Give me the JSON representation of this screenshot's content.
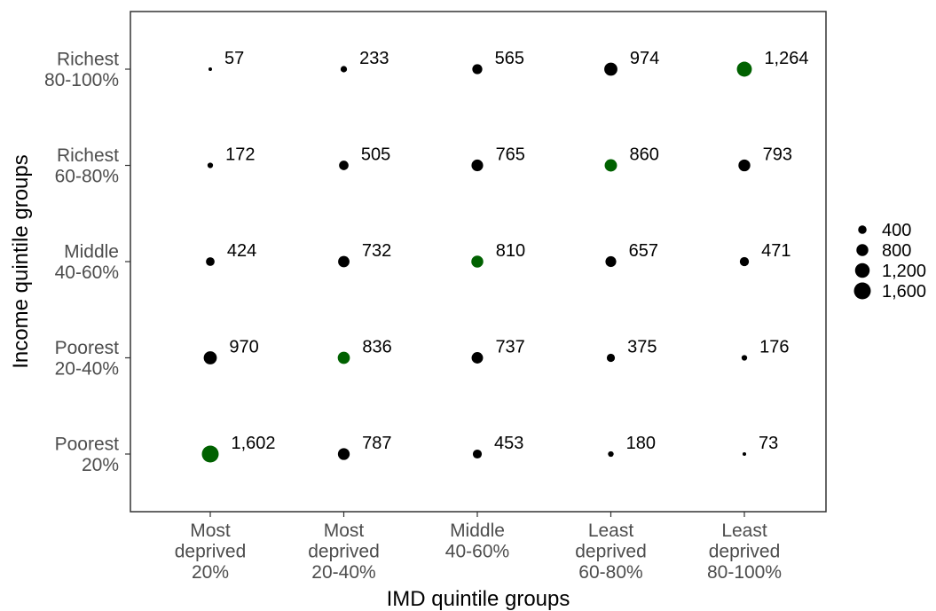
{
  "chart_data": {
    "type": "scatter",
    "xlabel": "IMD quintile groups",
    "ylabel": "Income quintile groups",
    "x_categories": [
      [
        "Most",
        "deprived",
        "20%"
      ],
      [
        "Most",
        "deprived",
        "20-40%"
      ],
      [
        "Middle",
        "40-60%"
      ],
      [
        "Least",
        "deprived",
        "60-80%"
      ],
      [
        "Least",
        "deprived",
        "80-100%"
      ]
    ],
    "y_categories": [
      [
        "Poorest",
        "20%"
      ],
      [
        "Poorest",
        "20-40%"
      ],
      [
        "Middle",
        "40-60%"
      ],
      [
        "Richest",
        "60-80%"
      ],
      [
        "Richest",
        "80-100%"
      ]
    ],
    "points": [
      {
        "x": 0,
        "y": 4,
        "value": 57,
        "label": "57",
        "highlight": false
      },
      {
        "x": 1,
        "y": 4,
        "value": 233,
        "label": "233",
        "highlight": false
      },
      {
        "x": 2,
        "y": 4,
        "value": 565,
        "label": "565",
        "highlight": false
      },
      {
        "x": 3,
        "y": 4,
        "value": 974,
        "label": "974",
        "highlight": false
      },
      {
        "x": 4,
        "y": 4,
        "value": 1264,
        "label": "1,264",
        "highlight": true
      },
      {
        "x": 0,
        "y": 3,
        "value": 172,
        "label": "172",
        "highlight": false
      },
      {
        "x": 1,
        "y": 3,
        "value": 505,
        "label": "505",
        "highlight": false
      },
      {
        "x": 2,
        "y": 3,
        "value": 765,
        "label": "765",
        "highlight": false
      },
      {
        "x": 3,
        "y": 3,
        "value": 860,
        "label": "860",
        "highlight": true
      },
      {
        "x": 4,
        "y": 3,
        "value": 793,
        "label": "793",
        "highlight": false
      },
      {
        "x": 0,
        "y": 2,
        "value": 424,
        "label": "424",
        "highlight": false
      },
      {
        "x": 1,
        "y": 2,
        "value": 732,
        "label": "732",
        "highlight": false
      },
      {
        "x": 2,
        "y": 2,
        "value": 810,
        "label": "810",
        "highlight": true
      },
      {
        "x": 3,
        "y": 2,
        "value": 657,
        "label": "657",
        "highlight": false
      },
      {
        "x": 4,
        "y": 2,
        "value": 471,
        "label": "471",
        "highlight": false
      },
      {
        "x": 0,
        "y": 1,
        "value": 970,
        "label": "970",
        "highlight": false
      },
      {
        "x": 1,
        "y": 1,
        "value": 836,
        "label": "836",
        "highlight": true
      },
      {
        "x": 2,
        "y": 1,
        "value": 737,
        "label": "737",
        "highlight": false
      },
      {
        "x": 3,
        "y": 1,
        "value": 375,
        "label": "375",
        "highlight": false
      },
      {
        "x": 4,
        "y": 1,
        "value": 176,
        "label": "176",
        "highlight": false
      },
      {
        "x": 0,
        "y": 0,
        "value": 1602,
        "label": "1,602",
        "highlight": true
      },
      {
        "x": 1,
        "y": 0,
        "value": 787,
        "label": "787",
        "highlight": false
      },
      {
        "x": 2,
        "y": 0,
        "value": 453,
        "label": "453",
        "highlight": false
      },
      {
        "x": 3,
        "y": 0,
        "value": 180,
        "label": "180",
        "highlight": false
      },
      {
        "x": 4,
        "y": 0,
        "value": 73,
        "label": "73",
        "highlight": false
      }
    ],
    "size_legend": {
      "values": [
        400,
        800,
        1200,
        1600
      ],
      "labels": [
        "400",
        "800",
        "1,200",
        "1,600"
      ],
      "placement": "right"
    },
    "colors": {
      "default": "#000000",
      "highlight": "#006100",
      "panel_border": "#333333",
      "tick_text": "#4d4d4d"
    },
    "grid": false
  }
}
